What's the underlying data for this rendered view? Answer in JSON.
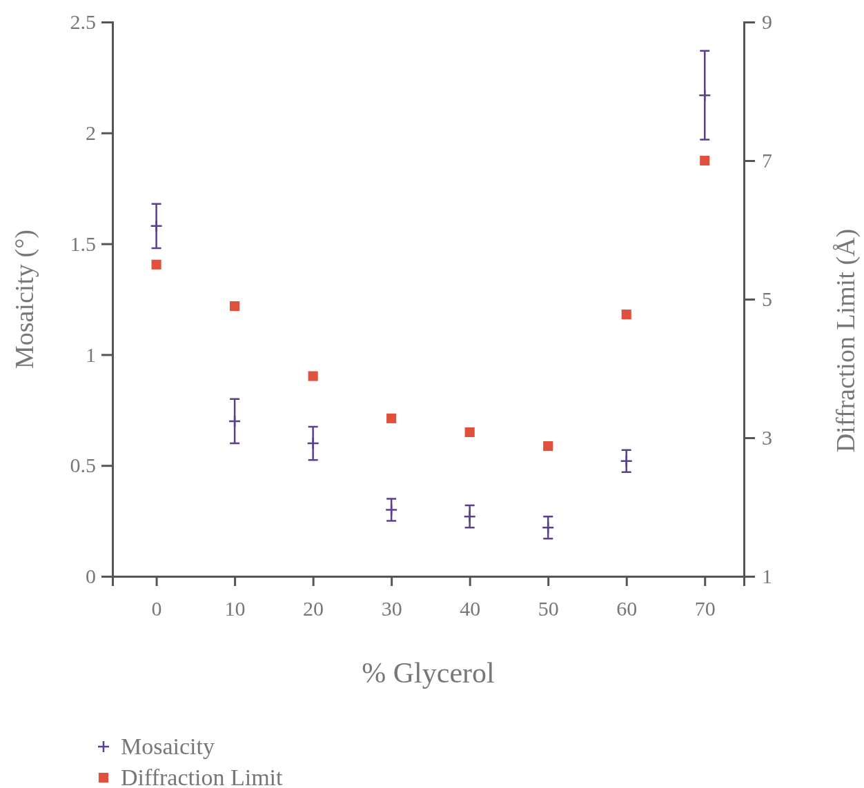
{
  "chart_data": {
    "type": "scatter",
    "xlabel": "% Glycerol",
    "ylabel": "Mosaicity (°)",
    "y2label": "Diffraction Limit (Å)",
    "x": [
      0,
      10,
      20,
      30,
      40,
      50,
      60,
      70
    ],
    "xlim": [
      -5.6,
      75
    ],
    "xticks": [
      0,
      10,
      20,
      30,
      40,
      50,
      60,
      70
    ],
    "ylim": [
      0,
      2.5
    ],
    "yticks": [
      0,
      0.5,
      1,
      1.5,
      2,
      2.5
    ],
    "y2lim": [
      1,
      9
    ],
    "y2ticks": [
      1,
      3,
      5,
      7,
      9
    ],
    "grid": false,
    "legend": "bottom left",
    "series": [
      {
        "name": "Mosaicity",
        "color": "#5b3f8f",
        "marker": "cross",
        "values": [
          1.58,
          0.7,
          0.6,
          0.3,
          0.27,
          0.22,
          0.52,
          2.17
        ],
        "errors": [
          0.1,
          0.1,
          0.075,
          0.05,
          0.05,
          0.05,
          0.05,
          0.2
        ]
      },
      {
        "name": "Diffraction Limit",
        "color": "#e0503c",
        "marker": "square",
        "axis": "y2",
        "values": [
          5.5,
          4.9,
          3.89,
          3.28,
          3.08,
          2.88,
          4.78,
          7.0
        ]
      }
    ]
  }
}
